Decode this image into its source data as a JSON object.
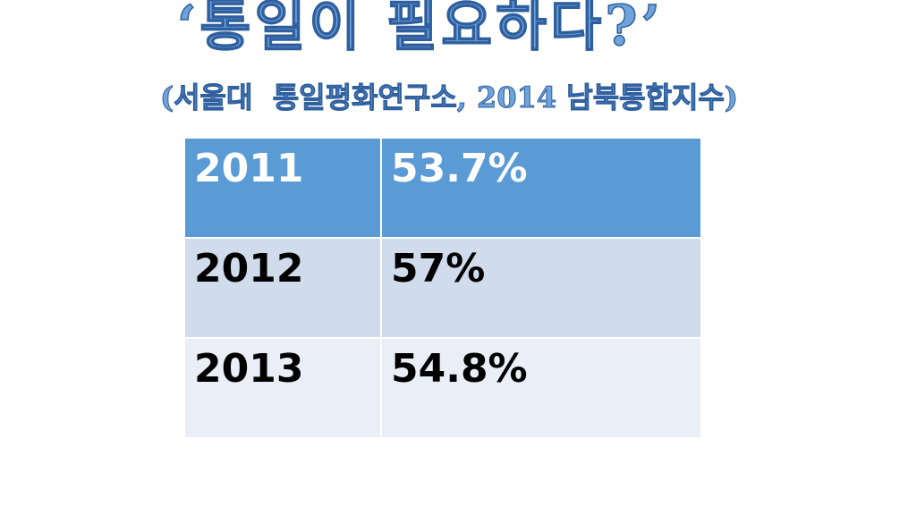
{
  "title": "‘통일이 필요하다?’",
  "subtitle": "(서울대  통일평화연구소, 2014 남북통합지수)",
  "table": {
    "rows": [
      [
        "2011",
        "53.7%"
      ],
      [
        "2012",
        "57%"
      ],
      [
        "2013",
        "54.8%"
      ]
    ]
  }
}
